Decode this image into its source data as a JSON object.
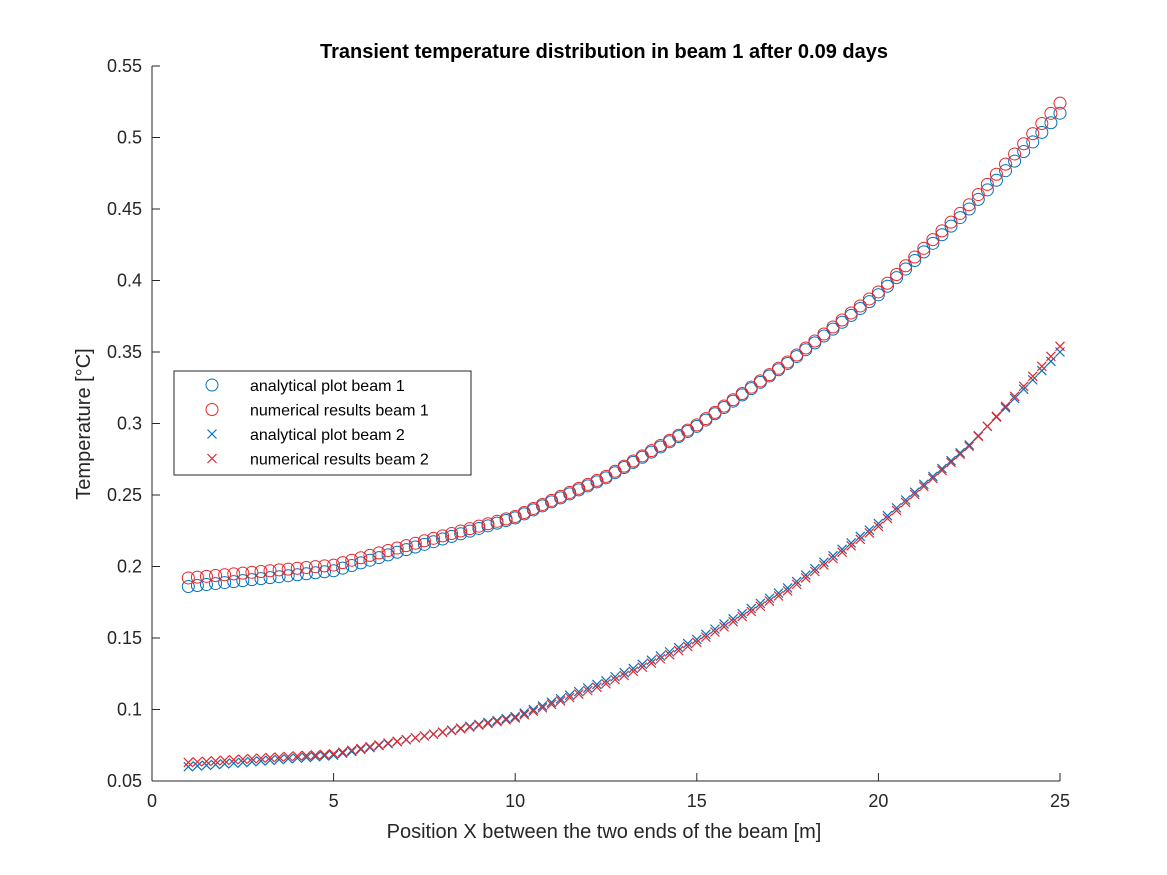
{
  "chart_data": {
    "type": "scatter",
    "title": "Transient temperature distribution in beam 1 after 0.09 days",
    "xlabel": "Position X between the two ends of the beam [m]",
    "ylabel": "Temperature [°C]",
    "xlim": [
      0,
      25
    ],
    "ylim": [
      0.05,
      0.55
    ],
    "xticks": [
      0,
      5,
      10,
      15,
      20,
      25
    ],
    "yticks": [
      0.05,
      0.1,
      0.15,
      0.2,
      0.25,
      0.3,
      0.35,
      0.4,
      0.45,
      0.5,
      0.55
    ],
    "xtick_labels": [
      "0",
      "5",
      "10",
      "15",
      "20",
      "25"
    ],
    "ytick_labels": [
      "0.05",
      "0.1",
      "0.15",
      "0.2",
      "0.25",
      "0.3",
      "0.35",
      "0.4",
      "0.45",
      "0.5",
      "0.55"
    ],
    "grid": false,
    "legend_position": "west",
    "x_range": {
      "start": 1,
      "end": 25,
      "count": 97
    },
    "series": [
      {
        "name": "analytical plot beam 1",
        "marker": "circle",
        "color": "#0072BD",
        "key_points": {
          "x": [
            1,
            5,
            10,
            12.5,
            15,
            17.5,
            20,
            22.5,
            25
          ],
          "y": [
            0.186,
            0.197,
            0.234,
            0.262,
            0.298,
            0.342,
            0.39,
            0.45,
            0.517
          ]
        }
      },
      {
        "name": "numerical results beam 1",
        "marker": "circle",
        "color": "#E8262B",
        "key_points": {
          "x": [
            1,
            5,
            10,
            12.5,
            15,
            17.5,
            20,
            22.5,
            25
          ],
          "y": [
            0.192,
            0.201,
            0.235,
            0.263,
            0.299,
            0.343,
            0.392,
            0.453,
            0.524
          ]
        }
      },
      {
        "name": "analytical plot beam 2",
        "marker": "x",
        "color": "#0072BD",
        "key_points": {
          "x": [
            1,
            5,
            10,
            12.5,
            15,
            17.5,
            20,
            22.5,
            25
          ],
          "y": [
            0.06,
            0.068,
            0.095,
            0.12,
            0.149,
            0.185,
            0.23,
            0.285,
            0.35
          ]
        }
      },
      {
        "name": "numerical results beam 2",
        "marker": "x",
        "color": "#E8262B",
        "key_points": {
          "x": [
            1,
            5,
            10,
            12.5,
            15,
            17.5,
            20,
            22.5,
            25
          ],
          "y": [
            0.063,
            0.069,
            0.094,
            0.118,
            0.147,
            0.183,
            0.228,
            0.284,
            0.354
          ]
        }
      }
    ]
  }
}
